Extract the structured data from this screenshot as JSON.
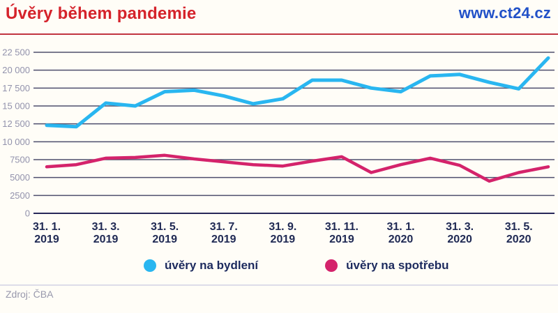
{
  "header": {
    "title": "Úvěry během pandemie",
    "site": "www.ct24.cz"
  },
  "footer": {
    "source": "Zdroj: ČBA"
  },
  "ui_colors": {
    "title_red": "#d5232b",
    "site_blue": "#2151c8",
    "divider_red": "#c13440",
    "gridline": "#4e4e6d",
    "axis_label_navy": "#202a54",
    "y_label_gray": "#9292ac",
    "background": "#fffdf7"
  },
  "chart_data": {
    "type": "line",
    "title": "Úvěry během pandemie",
    "xlabel": "",
    "ylabel": "",
    "ylim": [
      0,
      22500
    ],
    "grid": true,
    "legend_position": "bottom",
    "x_tick_every": 2,
    "x_tick_labels": [
      [
        "31. 1.",
        "2019"
      ],
      [
        "31. 3.",
        "2019"
      ],
      [
        "31. 5.",
        "2019"
      ],
      [
        "31. 7.",
        "2019"
      ],
      [
        "31. 9.",
        "2019"
      ],
      [
        "31. 11.",
        "2019"
      ],
      [
        "31. 1.",
        "2020"
      ],
      [
        "31. 3.",
        "2020"
      ],
      [
        "31. 5.",
        "2020"
      ]
    ],
    "y_ticks": [
      0,
      2500,
      5000,
      7500,
      10000,
      12500,
      15000,
      17500,
      20000,
      22500
    ],
    "y_tick_labels": [
      "0",
      "2500",
      "5000",
      "7500",
      "10 000",
      "12 500",
      "15 000",
      "17 500",
      "20 000",
      "22 500"
    ],
    "series": [
      {
        "name": "úvěry na bydlení",
        "color": "#29b6f0",
        "values": [
          12300,
          12100,
          15400,
          15000,
          17000,
          17200,
          16400,
          15300,
          16000,
          18600,
          18600,
          17500,
          17000,
          19200,
          19400,
          18300,
          17400,
          21700
        ]
      },
      {
        "name": "úvěry na spotřebu",
        "color": "#d4236b",
        "values": [
          6500,
          6800,
          7700,
          7800,
          8100,
          7600,
          7200,
          6800,
          6600,
          7300,
          7900,
          5700,
          6800,
          7700,
          6700,
          4500,
          5700,
          6500
        ]
      }
    ]
  }
}
